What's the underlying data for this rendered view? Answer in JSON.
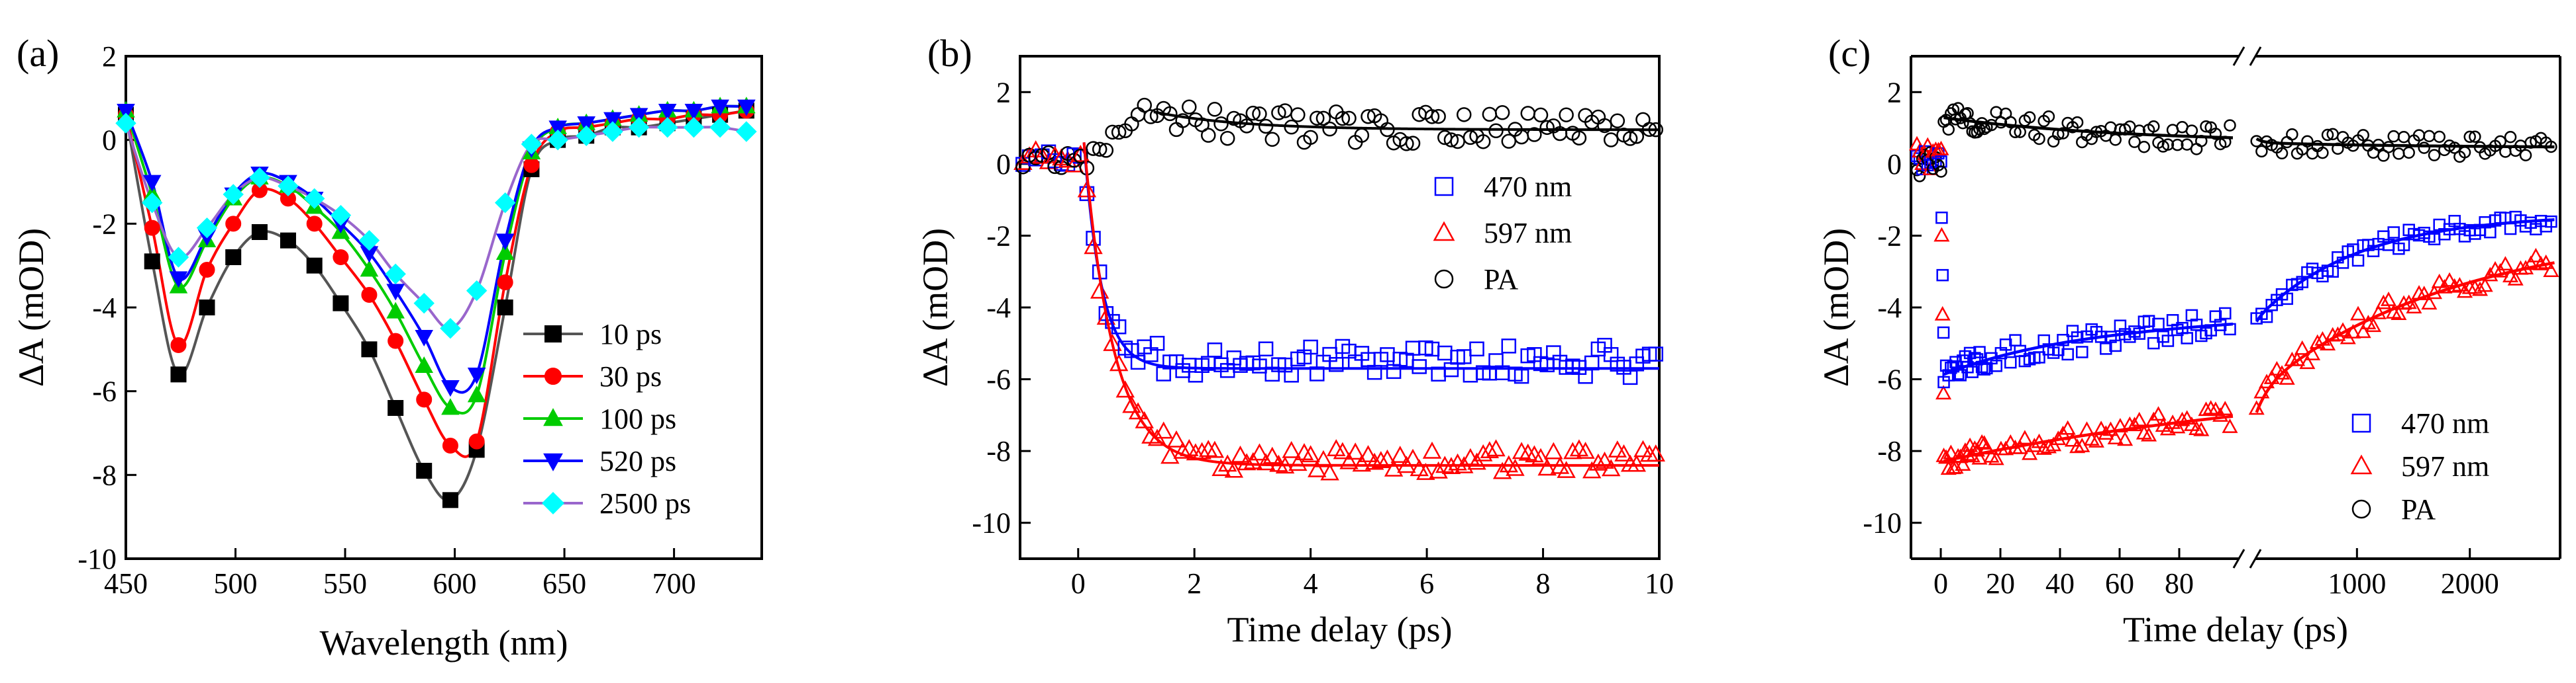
{
  "chart_data": [
    {
      "panel": "(a)",
      "type": "line",
      "xlabel": "Wavelength (nm)",
      "ylabel": "ΔA (mOD)",
      "xlim": [
        450,
        740
      ],
      "ylim": [
        -10,
        2
      ],
      "xticks": [
        450,
        500,
        550,
        600,
        650,
        700
      ],
      "yticks": [
        -10,
        -8,
        -6,
        -4,
        -2,
        0,
        2
      ],
      "legend_position": "lower-right",
      "series": [
        {
          "name": "10 ps",
          "marker": "square",
          "color": "#000000",
          "line_color": "#555555",
          "x": [
            450,
            462,
            474,
            487,
            499,
            511,
            524,
            536,
            548,
            561,
            573,
            586,
            598,
            610,
            623,
            635,
            647,
            660,
            672,
            684,
            697,
            709,
            721,
            733
          ],
          "y": [
            0.6,
            -2.9,
            -5.6,
            -4.0,
            -2.8,
            -2.2,
            -2.4,
            -3.0,
            -3.9,
            -5.0,
            -6.4,
            -7.9,
            -8.6,
            -7.4,
            -4.0,
            -0.7,
            0.0,
            0.1,
            0.3,
            0.3,
            0.4,
            0.5,
            0.6,
            0.7
          ]
        },
        {
          "name": "30 ps",
          "marker": "circle",
          "color": "#ff0000",
          "line_color": "#ff0000",
          "x": [
            450,
            462,
            474,
            487,
            499,
            511,
            524,
            536,
            548,
            561,
            573,
            586,
            598,
            610,
            623,
            635,
            647,
            660,
            672,
            684,
            697,
            709,
            721,
            733
          ],
          "y": [
            0.6,
            -2.1,
            -4.9,
            -3.1,
            -2.0,
            -1.2,
            -1.4,
            -2.0,
            -2.8,
            -3.7,
            -4.8,
            -6.2,
            -7.3,
            -7.2,
            -3.4,
            -0.6,
            0.2,
            0.3,
            0.4,
            0.5,
            0.5,
            0.6,
            0.6,
            0.7
          ]
        },
        {
          "name": "100 ps",
          "marker": "triangle",
          "color": "#00cc00",
          "line_color": "#00cc00",
          "x": [
            450,
            462,
            474,
            487,
            499,
            511,
            524,
            536,
            548,
            561,
            573,
            586,
            598,
            610,
            623,
            635,
            647,
            660,
            672,
            684,
            697,
            709,
            721,
            733
          ],
          "y": [
            0.7,
            -1.3,
            -3.5,
            -2.4,
            -1.4,
            -0.9,
            -1.1,
            -1.6,
            -2.2,
            -3.1,
            -4.1,
            -5.4,
            -6.4,
            -6.1,
            -2.7,
            -0.3,
            0.3,
            0.4,
            0.5,
            0.6,
            0.7,
            0.7,
            0.8,
            0.8
          ]
        },
        {
          "name": "520 ps",
          "marker": "triangle-down",
          "color": "#0000ff",
          "line_color": "#0000ff",
          "x": [
            450,
            462,
            474,
            487,
            499,
            511,
            524,
            536,
            548,
            561,
            573,
            586,
            598,
            610,
            623,
            635,
            647,
            660,
            672,
            684,
            697,
            709,
            721,
            733
          ],
          "y": [
            0.7,
            -1.0,
            -3.3,
            -2.3,
            -1.3,
            -0.8,
            -1.0,
            -1.4,
            -2.0,
            -2.7,
            -3.6,
            -4.7,
            -5.9,
            -5.6,
            -2.4,
            -0.2,
            0.3,
            0.4,
            0.5,
            0.6,
            0.7,
            0.7,
            0.8,
            0.8
          ]
        },
        {
          "name": "2500 ps",
          "marker": "diamond",
          "color": "#00ffff",
          "line_color": "#9966cc",
          "x": [
            450,
            462,
            474,
            487,
            499,
            511,
            524,
            536,
            548,
            561,
            573,
            586,
            598,
            610,
            623,
            635,
            647,
            660,
            672,
            684,
            697,
            709,
            721,
            733
          ],
          "y": [
            0.4,
            -1.5,
            -2.8,
            -2.1,
            -1.3,
            -0.9,
            -1.1,
            -1.4,
            -1.8,
            -2.4,
            -3.2,
            -3.9,
            -4.5,
            -3.6,
            -1.5,
            -0.1,
            0.0,
            0.1,
            0.2,
            0.3,
            0.3,
            0.3,
            0.3,
            0.2
          ]
        }
      ]
    },
    {
      "panel": "(b)",
      "type": "scatter",
      "xlabel": "Time delay (ps)",
      "ylabel": "ΔA (mOD)",
      "xlim": [
        -1,
        10
      ],
      "ylim": [
        -11,
        3
      ],
      "xticks": [
        0,
        2,
        4,
        6,
        8,
        10
      ],
      "yticks": [
        -10,
        -8,
        -6,
        -4,
        -2,
        0,
        2
      ],
      "legend_position": "right-middle",
      "series": [
        {
          "name": "470 nm",
          "marker": "square-open",
          "color": "#0000ff",
          "plateau": -5.5,
          "fit_plateau": -5.7
        },
        {
          "name": "597 nm",
          "marker": "triangle-open",
          "color": "#ff0000",
          "plateau": -8.3,
          "fit_plateau": -8.4
        },
        {
          "name": "PA",
          "marker": "circle-open",
          "color": "#000000",
          "plateau": 1.0,
          "fit_plateau": 0.95
        }
      ]
    },
    {
      "panel": "(c)",
      "type": "scatter",
      "xlabel": "Time delay (ps)",
      "ylabel": "ΔA (mOD)",
      "ylim": [
        -11,
        3
      ],
      "axis_break": true,
      "left_segment": {
        "xlim": [
          -10,
          100
        ],
        "xticks": [
          0,
          20,
          40,
          60,
          80
        ]
      },
      "right_segment": {
        "xlim": [
          100,
          2800
        ],
        "xticks": [
          1000,
          2000
        ]
      },
      "yticks": [
        -10,
        -8,
        -6,
        -4,
        -2,
        0,
        2
      ],
      "legend_position": "lower-right",
      "series": [
        {
          "name": "470 nm",
          "marker": "square-open",
          "color": "#0000ff"
        },
        {
          "name": "597 nm",
          "marker": "triangle-open",
          "color": "#ff0000"
        },
        {
          "name": "PA",
          "marker": "circle-open",
          "color": "#000000"
        }
      ]
    }
  ]
}
